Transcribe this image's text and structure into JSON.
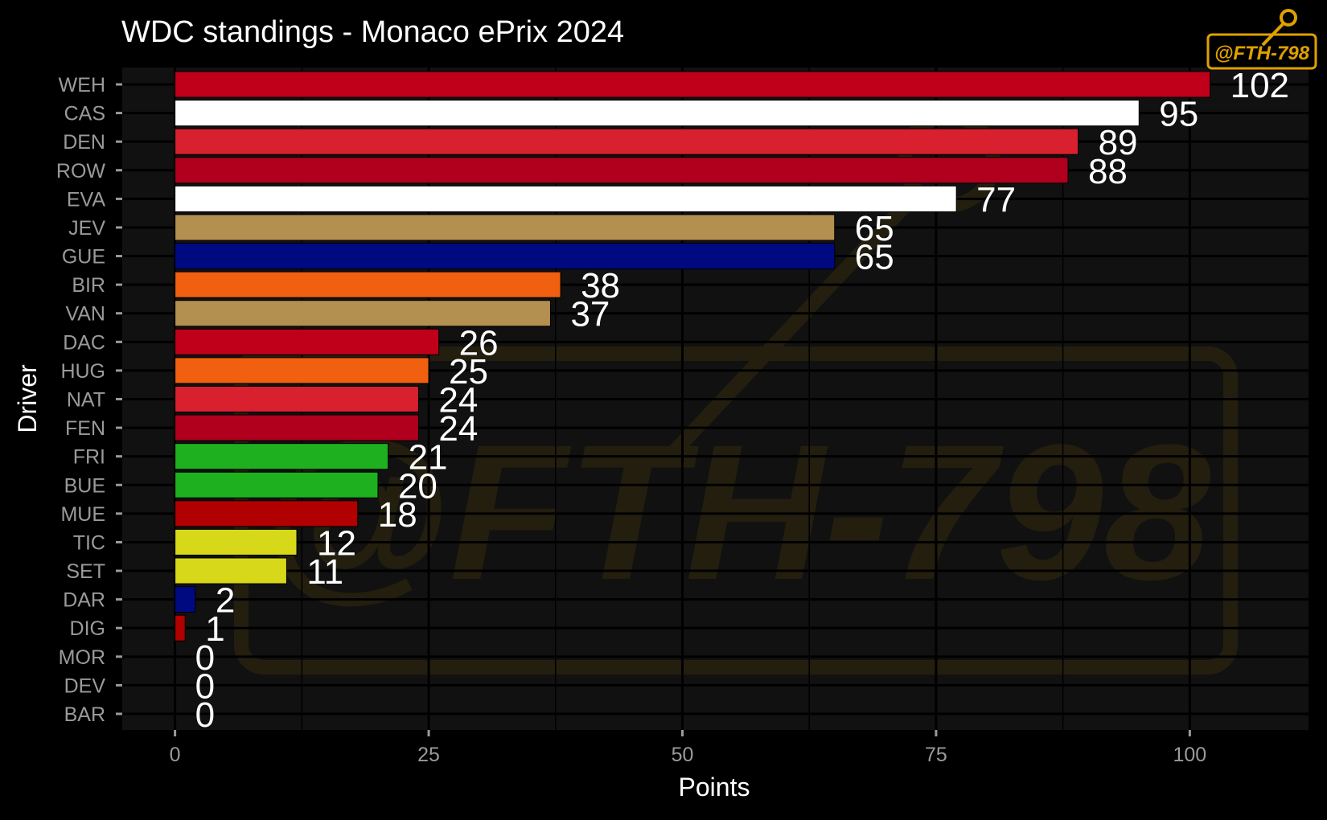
{
  "chart_data": {
    "type": "bar",
    "orientation": "horizontal",
    "title": "WDC standings - Monaco ePrix 2024",
    "xlabel": "Points",
    "ylabel": "Driver",
    "xlim": [
      -5.2,
      111.7
    ],
    "x_ticks": [
      0,
      25,
      50,
      75,
      100
    ],
    "grid": true,
    "legend": "none",
    "background_color": "#000000",
    "panel_color": "#111111",
    "categories": [
      "WEH",
      "CAS",
      "DEN",
      "ROW",
      "EVA",
      "JEV",
      "GUE",
      "BIR",
      "VAN",
      "DAC",
      "HUG",
      "NAT",
      "FEN",
      "FRI",
      "BUE",
      "MUE",
      "TIC",
      "SET",
      "DAR",
      "DIG",
      "MOR",
      "DEV",
      "BAR"
    ],
    "values": [
      102,
      95,
      89,
      88,
      77,
      65,
      65,
      38,
      37,
      26,
      25,
      24,
      24,
      21,
      20,
      18,
      12,
      11,
      2,
      1,
      0,
      0,
      0
    ],
    "colors": [
      "#c0001a",
      "#ffffff",
      "#d8202e",
      "#b0001e",
      "#ffffff",
      "#b38f50",
      "#000a80",
      "#f06010",
      "#b38f50",
      "#c0001a",
      "#f06010",
      "#d8202e",
      "#b0001e",
      "#1fb020",
      "#1fb020",
      "#b00000",
      "#d8d81a",
      "#d8d81a",
      "#000a80",
      "#b00000",
      "#888888",
      "#888888",
      "#888888"
    ]
  },
  "logo": {
    "text": "@FTH-798",
    "color": "#e0a000"
  }
}
